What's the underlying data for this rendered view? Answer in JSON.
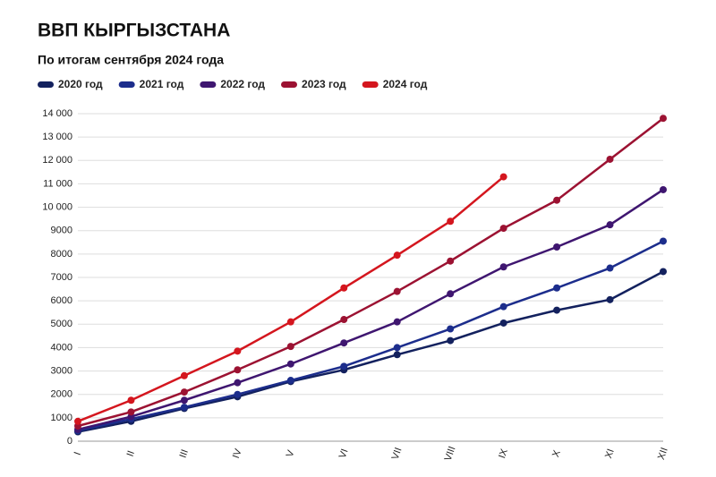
{
  "chart_data": {
    "type": "line",
    "title": "ВВП КЫРГЫЗСТАНА",
    "subtitle": "По итогам сентября 2024 года",
    "categories": [
      "I",
      "II",
      "III",
      "IV",
      "V",
      "VI",
      "VII",
      "VIII",
      "IX",
      "X",
      "XI",
      "XII"
    ],
    "series": [
      {
        "name": "2020 год",
        "color": "#13215e",
        "values": [
          400,
          850,
          1400,
          1900,
          2550,
          3050,
          3700,
          4300,
          5050,
          5600,
          6050,
          7250
        ]
      },
      {
        "name": "2021 год",
        "color": "#1c2d8c",
        "values": [
          450,
          950,
          1450,
          2000,
          2600,
          3200,
          4000,
          4800,
          5750,
          6550,
          7400,
          8550
        ]
      },
      {
        "name": "2022 год",
        "color": "#3f1670",
        "values": [
          500,
          1050,
          1750,
          2500,
          3300,
          4200,
          5100,
          6300,
          7450,
          8300,
          9250,
          10750
        ]
      },
      {
        "name": "2023 год",
        "color": "#9c1232",
        "values": [
          650,
          1250,
          2100,
          3050,
          4050,
          5200,
          6400,
          7700,
          9100,
          10300,
          12050,
          13800
        ]
      },
      {
        "name": "2024 год",
        "color": "#d4161e",
        "values": [
          850,
          1750,
          2800,
          3850,
          5100,
          6550,
          7950,
          9400,
          11300,
          null,
          null,
          null
        ]
      }
    ],
    "ylim": [
      0,
      14000
    ],
    "yticks": [
      0,
      1000,
      2000,
      3000,
      4000,
      5000,
      6000,
      7000,
      8000,
      9000,
      {
        "value": 10000,
        "label": "10 000"
      },
      {
        "value": 11000,
        "label": "11 000"
      },
      {
        "value": 12000,
        "label": "12 000"
      },
      {
        "value": 13000,
        "label": "13 000"
      },
      {
        "value": 14000,
        "label": "14 000"
      }
    ],
    "grid": true,
    "legend": "top"
  }
}
